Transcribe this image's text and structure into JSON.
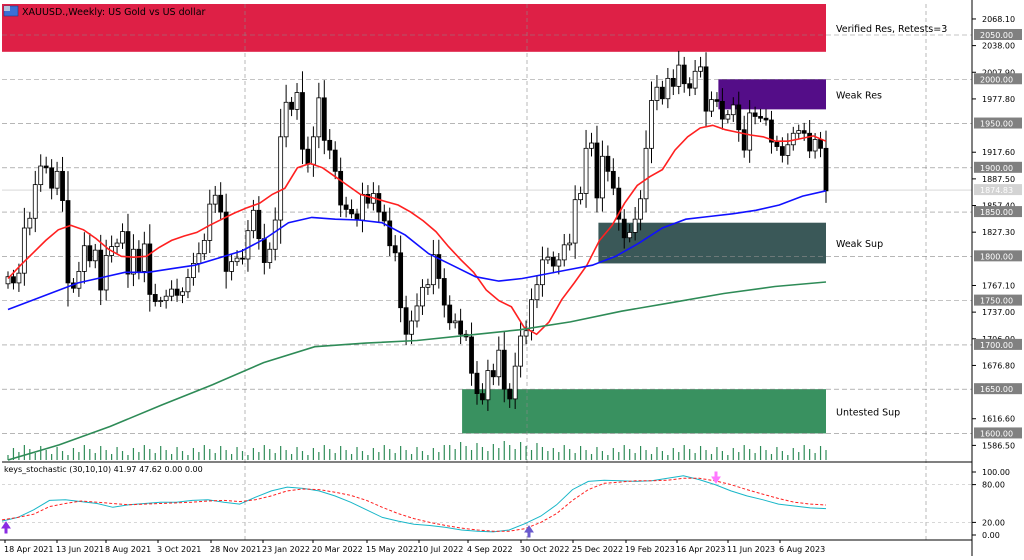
{
  "header": {
    "symbol_label": "XAUUSD.,Weekly: US Gold vs US dollar"
  },
  "indicator": {
    "label": "keys_stochastic (30,10,10) 41.97 47.62 0.00 0.00"
  },
  "zones": [
    {
      "name": "verified-res-zone",
      "label": "Verified Res, Retests=3",
      "low": 2031,
      "high": 2085,
      "from_index": 0,
      "color": "#dc143c"
    },
    {
      "name": "weak-res-zone",
      "label": "Weak Res",
      "low": 1966,
      "high": 2000,
      "from_index": 131,
      "color": "#4b0082"
    },
    {
      "name": "weak-sup-zone",
      "label": "Weak Sup",
      "low": 1792,
      "high": 1838,
      "from_index": 109,
      "color": "#2f4f4f"
    },
    {
      "name": "untested-sup-zone",
      "label": "Untested Sup",
      "low": 1600,
      "high": 1650,
      "from_index": 84,
      "color": "#2e8b57"
    }
  ],
  "chart_data": [
    {
      "type": "candlestick",
      "title": "XAUUSD.,Weekly: US Gold vs US dollar",
      "x_labels": [
        "18 Apr 2021",
        "13 Jun 2021",
        "8 Aug 2021",
        "3 Oct 2021",
        "28 Nov 2021",
        "23 Jan 2022",
        "20 Mar 2022",
        "15 May 2022",
        "10 Jul 2022",
        "4 Sep 2022",
        "30 Oct 2022",
        "25 Dec 2022",
        "19 Feb 2023",
        "16 Apr 2023",
        "11 Jun 2023",
        "6 Aug 2023"
      ],
      "ylim": [
        1570,
        2085
      ],
      "price_ticks": [
        2068.1,
        2038.0,
        2007.9,
        1977.8,
        1917.6,
        1887.5,
        1857.4,
        1827.3,
        1767.1,
        1737.0,
        1706.9,
        1676.8,
        1616.6,
        1586.5
      ],
      "level_tags": [
        2050.0,
        2000.0,
        1950.0,
        1900.0,
        1850.0,
        1800.0,
        1750.0,
        1700.0,
        1650.0,
        1600.0
      ],
      "current_price": 1874.83,
      "series": [
        {
          "name": "Close",
          "closes": [
            1777,
            1770,
            1781,
            1832,
            1843,
            1881,
            1902,
            1900,
            1877,
            1896,
            1863,
            1770,
            1764,
            1783,
            1812,
            1795,
            1807,
            1762,
            1801,
            1811,
            1815,
            1828,
            1780,
            1808,
            1783,
            1814,
            1757,
            1749,
            1750,
            1755,
            1763,
            1756,
            1760,
            1776,
            1792,
            1803,
            1818,
            1859,
            1869,
            1850,
            1783,
            1794,
            1798,
            1797,
            1829,
            1852,
            1820,
            1793,
            1808,
            1841,
            1935,
            1974,
            1966,
            1985,
            1921,
            1904,
            1935,
            1979,
            1931,
            1920,
            1896,
            1858,
            1853,
            1848,
            1841,
            1870,
            1860,
            1871,
            1850,
            1840,
            1812,
            1804,
            1742,
            1712,
            1727,
            1744,
            1765,
            1768,
            1802,
            1775,
            1745,
            1725,
            1727,
            1712,
            1709,
            1668,
            1645,
            1638,
            1671,
            1664,
            1694,
            1650,
            1639,
            1676,
            1710,
            1716,
            1751,
            1768,
            1796,
            1799,
            1789,
            1796,
            1813,
            1815,
            1864,
            1871,
            1922,
            1928,
            1866,
            1913,
            1896,
            1877,
            1842,
            1821,
            1827,
            1842,
            1865,
            1922,
            1976,
            1991,
            1978,
            2001,
            1992,
            2016,
            1995,
            1990,
            2009,
            2014,
            1964,
            1977,
            1975,
            1955,
            1960,
            1971,
            1943,
            1920,
            1962,
            1958,
            1956,
            1954,
            1929,
            1924,
            1914,
            1926,
            1939,
            1942,
            1939,
            1919,
            1932,
            1922,
            1874
          ]
        },
        {
          "name": "MA fast (red)",
          "values": [
            1775,
            1790,
            1804,
            1818,
            1830,
            1835,
            1830,
            1820,
            1808,
            1800,
            1799,
            1800,
            1810,
            1818,
            1823,
            1827,
            1835,
            1842,
            1849,
            1855,
            1860,
            1870,
            1877,
            1900,
            1905,
            1900,
            1890,
            1880,
            1870,
            1866,
            1862,
            1858,
            1850,
            1840,
            1828,
            1811,
            1796,
            1782,
            1762,
            1750,
            1743,
            1720,
            1712,
            1726,
            1751,
            1770,
            1790,
            1818,
            1835,
            1860,
            1880,
            1890,
            1898,
            1920,
            1935,
            1945,
            1948,
            1943,
            1940,
            1937,
            1935,
            1930,
            1930,
            1933,
            1936,
            1930
          ]
        },
        {
          "name": "MA mid (blue)",
          "values": [
            1740,
            1750,
            1760,
            1770,
            1776,
            1782,
            1782,
            1786,
            1790,
            1798,
            1806,
            1820,
            1838,
            1844,
            1842,
            1841,
            1838,
            1824,
            1803,
            1790,
            1777,
            1772,
            1775,
            1780,
            1785,
            1790,
            1800,
            1815,
            1832,
            1842,
            1845,
            1848,
            1852,
            1858,
            1868,
            1874
          ]
        },
        {
          "name": "MA slow (green)",
          "values": [
            1570,
            1587,
            1608,
            1632,
            1655,
            1680,
            1698,
            1702,
            1705,
            1711,
            1717,
            1726,
            1738,
            1748,
            1758,
            1766,
            1771
          ]
        }
      ],
      "volume_range": [
        1,
        22
      ],
      "stochastic": {
        "ylim": [
          0,
          100
        ],
        "ticks": [
          100,
          80,
          20,
          0
        ],
        "main": [
          22,
          28,
          40,
          55,
          56,
          53,
          50,
          44,
          48,
          50,
          52,
          52,
          55,
          56,
          52,
          49,
          60,
          70,
          76,
          74,
          70,
          62,
          52,
          40,
          28,
          22,
          17,
          15,
          12,
          8,
          6,
          5,
          8,
          18,
          30,
          48,
          72,
          85,
          87,
          86,
          85,
          86,
          90,
          94,
          88,
          80,
          70,
          62,
          56,
          49,
          46,
          43,
          41.97
        ],
        "signal": [
          24,
          28,
          33,
          45,
          50,
          54,
          52,
          50,
          48,
          49,
          50,
          51,
          52,
          54,
          55,
          53,
          56,
          62,
          70,
          73,
          72,
          68,
          63,
          55,
          44,
          34,
          26,
          20,
          15,
          11,
          8,
          6,
          6,
          10,
          20,
          34,
          55,
          72,
          82,
          84,
          86,
          86,
          87,
          90,
          90,
          86,
          80,
          72,
          65,
          58,
          52,
          49,
          47.62
        ]
      }
    }
  ]
}
